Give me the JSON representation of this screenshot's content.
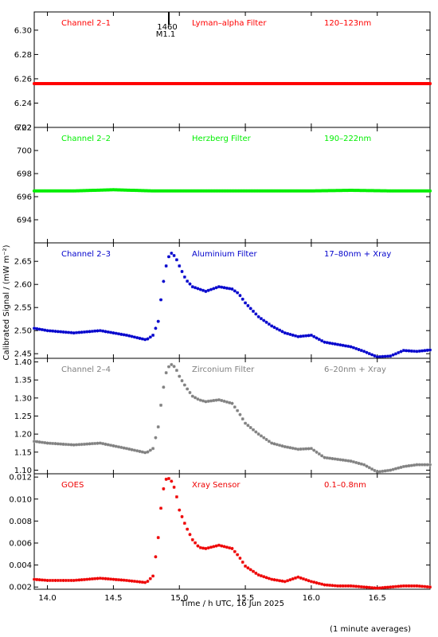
{
  "figure": {
    "xlabel": "Time / h UTC, 16 Jun 2025",
    "ylabel": "Calibrated Signal / (mW m⁻²)",
    "footnote": "(1 minute averages)",
    "event_marker": {
      "x": 14.92,
      "label_top": "1460",
      "label_bottom": "M1.1"
    },
    "xlim": [
      13.9,
      16.9
    ],
    "xticks": [
      14.0,
      14.5,
      15.0,
      15.5,
      16.0,
      16.5
    ],
    "xtick_labels": [
      "14.0",
      "14.5",
      "15.0",
      "15.5",
      "16.0",
      "16.5"
    ]
  },
  "chart_data": [
    {
      "type": "scatter",
      "channel": "Channel 2–1",
      "filter": "Lyman–alpha Filter",
      "band": "120–123nm",
      "color": "#ff0000",
      "ylim": [
        6.22,
        6.315
      ],
      "yticks": [
        6.22,
        6.24,
        6.26,
        6.28,
        6.3
      ],
      "ytick_labels": [
        "6.22",
        "6.24",
        "6.26",
        "6.28",
        "6.30"
      ],
      "x": [
        13.9,
        14.2,
        14.5,
        14.8,
        15.1,
        15.4,
        15.7,
        16.0,
        16.3,
        16.6,
        16.9
      ],
      "y": [
        6.256,
        6.256,
        6.256,
        6.256,
        6.256,
        6.256,
        6.256,
        6.256,
        6.256,
        6.256,
        6.256
      ]
    },
    {
      "type": "scatter",
      "channel": "Channel 2–2",
      "filter": "Herzberg Filter",
      "band": "190–222nm",
      "color": "#00ee00",
      "ylim": [
        692,
        702
      ],
      "yticks": [
        694,
        696,
        698,
        700,
        702
      ],
      "ytick_labels": [
        "694",
        "696",
        "698",
        "700",
        "702"
      ],
      "x": [
        13.9,
        14.2,
        14.5,
        14.8,
        15.1,
        15.4,
        15.7,
        16.0,
        16.3,
        16.6,
        16.9
      ],
      "y": [
        696.5,
        696.5,
        696.6,
        696.5,
        696.5,
        696.5,
        696.5,
        696.5,
        696.55,
        696.5,
        696.5
      ]
    },
    {
      "type": "scatter",
      "channel": "Channel 2–3",
      "filter": "Aluminium Filter",
      "band": "17–80nm + Xray",
      "color": "#0000cc",
      "ylim": [
        2.44,
        2.69
      ],
      "yticks": [
        2.45,
        2.5,
        2.55,
        2.6,
        2.65
      ],
      "ytick_labels": [
        "2.45",
        "2.50",
        "2.55",
        "2.60",
        "2.65"
      ],
      "x": [
        13.9,
        14.0,
        14.2,
        14.4,
        14.6,
        14.75,
        14.8,
        14.84,
        14.87,
        14.9,
        14.93,
        14.97,
        15.0,
        15.05,
        15.1,
        15.15,
        15.2,
        15.3,
        15.4,
        15.45,
        15.5,
        15.6,
        15.7,
        15.8,
        15.9,
        16.0,
        16.1,
        16.2,
        16.3,
        16.4,
        16.5,
        16.6,
        16.7,
        16.8,
        16.9
      ],
      "y": [
        2.505,
        2.5,
        2.495,
        2.5,
        2.49,
        2.48,
        2.49,
        2.52,
        2.59,
        2.64,
        2.67,
        2.66,
        2.64,
        2.61,
        2.595,
        2.59,
        2.585,
        2.595,
        2.59,
        2.58,
        2.56,
        2.53,
        2.51,
        2.495,
        2.487,
        2.49,
        2.475,
        2.47,
        2.465,
        2.455,
        2.443,
        2.445,
        2.457,
        2.455,
        2.458
      ]
    },
    {
      "type": "scatter",
      "channel": "Channel 2–4",
      "filter": "Zirconium Filter",
      "band": "6–20nm + Xray",
      "color": "#808080",
      "ylim": [
        1.09,
        1.41
      ],
      "yticks": [
        1.1,
        1.15,
        1.2,
        1.25,
        1.3,
        1.35,
        1.4
      ],
      "ytick_labels": [
        "1.10",
        "1.15",
        "1.20",
        "1.25",
        "1.30",
        "1.35",
        "1.40"
      ],
      "x": [
        13.9,
        14.0,
        14.2,
        14.4,
        14.6,
        14.75,
        14.8,
        14.84,
        14.87,
        14.9,
        14.93,
        14.97,
        15.0,
        15.05,
        15.1,
        15.15,
        15.2,
        15.3,
        15.4,
        15.45,
        15.5,
        15.6,
        15.7,
        15.8,
        15.9,
        16.0,
        16.1,
        16.2,
        16.3,
        16.4,
        16.5,
        16.6,
        16.7,
        16.8,
        16.9
      ],
      "y": [
        1.18,
        1.175,
        1.17,
        1.175,
        1.16,
        1.148,
        1.16,
        1.22,
        1.31,
        1.37,
        1.395,
        1.385,
        1.36,
        1.33,
        1.305,
        1.295,
        1.29,
        1.295,
        1.285,
        1.26,
        1.23,
        1.2,
        1.175,
        1.165,
        1.158,
        1.16,
        1.135,
        1.13,
        1.125,
        1.115,
        1.095,
        1.1,
        1.11,
        1.115,
        1.115
      ]
    },
    {
      "type": "scatter",
      "channel": "GOES",
      "filter": "Xray Sensor",
      "band": "0.1–0.8nm",
      "color": "#ee0000",
      "ylim": [
        0.0018,
        0.0123
      ],
      "yticks": [
        0.002,
        0.004,
        0.006,
        0.008,
        0.01,
        0.012
      ],
      "ytick_labels": [
        "0.002",
        "0.004",
        "0.006",
        "0.008",
        "0.010",
        "0.012"
      ],
      "x": [
        13.9,
        14.0,
        14.2,
        14.4,
        14.6,
        14.75,
        14.8,
        14.84,
        14.87,
        14.9,
        14.93,
        14.97,
        15.0,
        15.05,
        15.1,
        15.15,
        15.2,
        15.3,
        15.4,
        15.45,
        15.5,
        15.6,
        15.7,
        15.8,
        15.9,
        16.0,
        16.1,
        16.2,
        16.3,
        16.4,
        16.5,
        16.6,
        16.7,
        16.8,
        16.9
      ],
      "y": [
        0.0027,
        0.0026,
        0.0026,
        0.0028,
        0.0026,
        0.0024,
        0.003,
        0.0065,
        0.0105,
        0.0118,
        0.0119,
        0.0108,
        0.009,
        0.0075,
        0.0063,
        0.0056,
        0.0055,
        0.0058,
        0.0055,
        0.0048,
        0.0039,
        0.0031,
        0.0027,
        0.0025,
        0.0029,
        0.0025,
        0.0022,
        0.0021,
        0.0021,
        0.002,
        0.0019,
        0.002,
        0.0021,
        0.0021,
        0.002
      ]
    }
  ]
}
